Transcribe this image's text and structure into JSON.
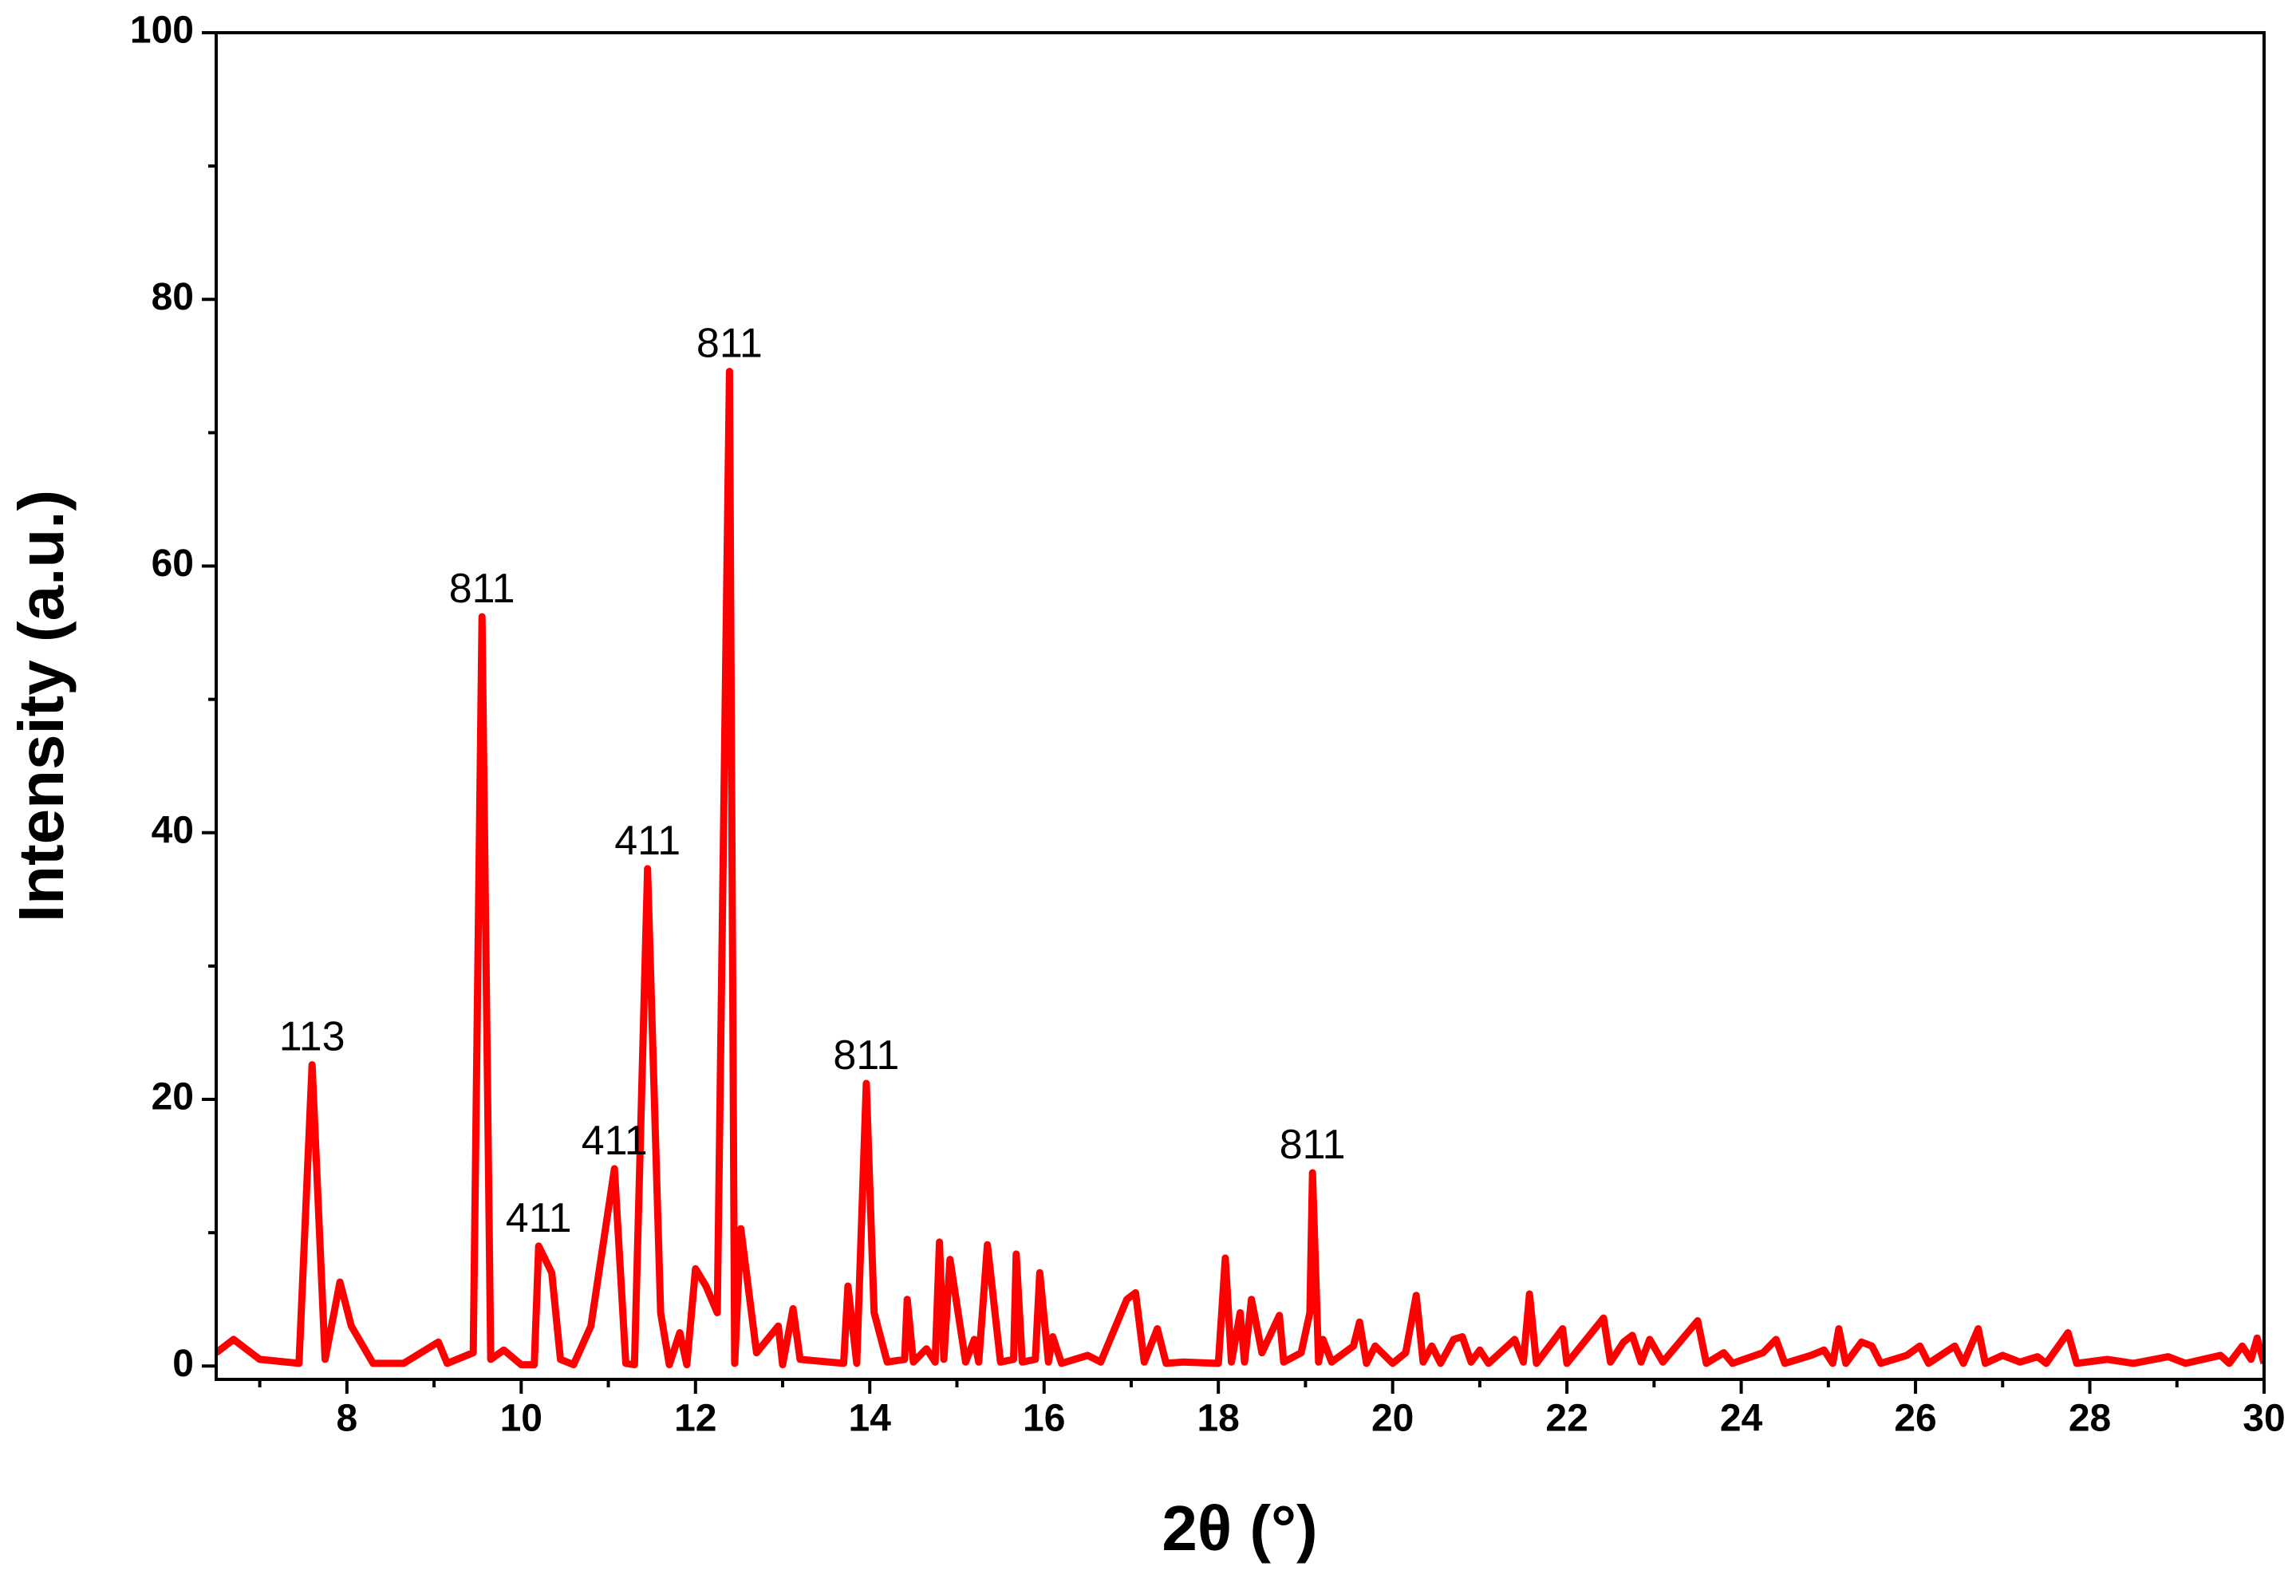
{
  "chart_data": {
    "type": "line",
    "xlabel": "2θ (°)",
    "ylabel": "Intensity (a.u.)",
    "color": "#ff0000",
    "xlim": [
      6.5,
      30
    ],
    "xticks": [
      8,
      10,
      12,
      14,
      16,
      18,
      20,
      22,
      24,
      26,
      28,
      30
    ],
    "ylim": [
      -1,
      100
    ],
    "yticks": [
      0,
      20,
      40,
      60,
      80,
      100
    ],
    "x": [
      6.5,
      6.7,
      7.0,
      7.45,
      7.6,
      7.75,
      7.92,
      8.05,
      8.3,
      8.65,
      9.05,
      9.15,
      9.45,
      9.55,
      9.65,
      9.8,
      10.0,
      10.15,
      10.2,
      10.35,
      10.45,
      10.6,
      10.8,
      11.07,
      11.2,
      11.3,
      11.45,
      11.6,
      11.7,
      11.82,
      11.9,
      12.0,
      12.12,
      12.25,
      12.39,
      12.45,
      12.52,
      12.7,
      12.95,
      13.0,
      13.12,
      13.2,
      13.7,
      13.75,
      13.85,
      13.96,
      14.05,
      14.2,
      14.4,
      14.43,
      14.5,
      14.65,
      14.75,
      14.8,
      14.85,
      14.92,
      15.1,
      15.2,
      15.25,
      15.35,
      15.5,
      15.65,
      15.68,
      15.75,
      15.9,
      15.95,
      16.05,
      16.1,
      16.2,
      16.5,
      16.65,
      16.95,
      17.05,
      17.15,
      17.3,
      17.4,
      17.6,
      18.0,
      18.08,
      18.15,
      18.25,
      18.3,
      18.38,
      18.5,
      18.7,
      18.75,
      18.95,
      19.05,
      19.08,
      19.15,
      19.2,
      19.3,
      19.55,
      19.62,
      19.7,
      19.8,
      20.0,
      20.15,
      20.27,
      20.35,
      20.45,
      20.55,
      20.7,
      20.8,
      20.9,
      21.0,
      21.1,
      21.4,
      21.5,
      21.57,
      21.65,
      21.95,
      22.0,
      22.42,
      22.5,
      22.65,
      22.75,
      22.85,
      22.95,
      23.1,
      23.5,
      23.6,
      23.8,
      23.9,
      24.25,
      24.4,
      24.5,
      24.8,
      24.95,
      25.05,
      25.12,
      25.2,
      25.38,
      25.5,
      25.6,
      25.9,
      26.05,
      26.15,
      26.45,
      26.55,
      26.72,
      26.8,
      27.0,
      27.2,
      27.4,
      27.5,
      27.75,
      27.85,
      28.2,
      28.5,
      28.9,
      29.1,
      29.5,
      29.6,
      29.75,
      29.85,
      29.92,
      30.0
    ],
    "values": [
      1.0,
      2.0,
      0.5,
      0.2,
      22.6,
      0.5,
      6.3,
      3.0,
      0.2,
      0.2,
      1.8,
      0.2,
      1.0,
      56.2,
      0.5,
      1.2,
      0.1,
      0.1,
      9.0,
      7.0,
      0.5,
      0.1,
      3.0,
      14.8,
      0.2,
      0.1,
      37.3,
      4.0,
      0.1,
      2.5,
      0.1,
      7.3,
      6.0,
      4.0,
      74.6,
      0.2,
      10.3,
      1.0,
      3.0,
      0.1,
      4.3,
      0.5,
      0.2,
      6.0,
      0.2,
      21.2,
      4.0,
      0.3,
      0.5,
      5.0,
      0.3,
      1.3,
      0.3,
      9.3,
      0.5,
      8.0,
      0.3,
      2.0,
      0.3,
      9.1,
      0.3,
      0.5,
      8.4,
      0.3,
      0.5,
      7.0,
      0.3,
      2.2,
      0.2,
      0.8,
      0.3,
      5.0,
      5.5,
      0.3,
      2.8,
      0.2,
      0.3,
      0.2,
      8.1,
      0.3,
      4.0,
      0.3,
      5.0,
      1.0,
      3.8,
      0.3,
      1.0,
      4.0,
      14.5,
      0.3,
      2.0,
      0.3,
      1.5,
      3.3,
      0.2,
      1.5,
      0.2,
      1.0,
      5.3,
      0.3,
      1.5,
      0.2,
      2.0,
      2.2,
      0.3,
      1.2,
      0.2,
      2.0,
      0.3,
      5.4,
      0.2,
      2.8,
      0.2,
      3.6,
      0.3,
      1.8,
      2.3,
      0.3,
      2.0,
      0.3,
      3.4,
      0.2,
      1.0,
      0.2,
      1.0,
      2.0,
      0.2,
      0.8,
      1.2,
      0.2,
      2.8,
      0.2,
      1.8,
      1.5,
      0.2,
      0.8,
      1.5,
      0.2,
      1.5,
      0.2,
      2.8,
      0.2,
      0.8,
      0.3,
      0.7,
      0.2,
      2.5,
      0.2,
      0.5,
      0.2,
      0.7,
      0.2,
      0.8,
      0.2,
      1.5,
      0.5,
      2.1,
      0.2
    ],
    "annotations": [
      {
        "label": "113",
        "x": 7.6,
        "y": 22.6
      },
      {
        "label": "811",
        "x": 9.55,
        "y": 56.2
      },
      {
        "label": "411",
        "x": 10.2,
        "y": 9.0
      },
      {
        "label": "411",
        "x": 11.07,
        "y": 14.8
      },
      {
        "label": "411",
        "x": 11.45,
        "y": 37.3
      },
      {
        "label": "811",
        "x": 12.39,
        "y": 74.6
      },
      {
        "label": "811",
        "x": 13.96,
        "y": 21.2
      },
      {
        "label": "811",
        "x": 19.08,
        "y": 14.5
      }
    ]
  }
}
